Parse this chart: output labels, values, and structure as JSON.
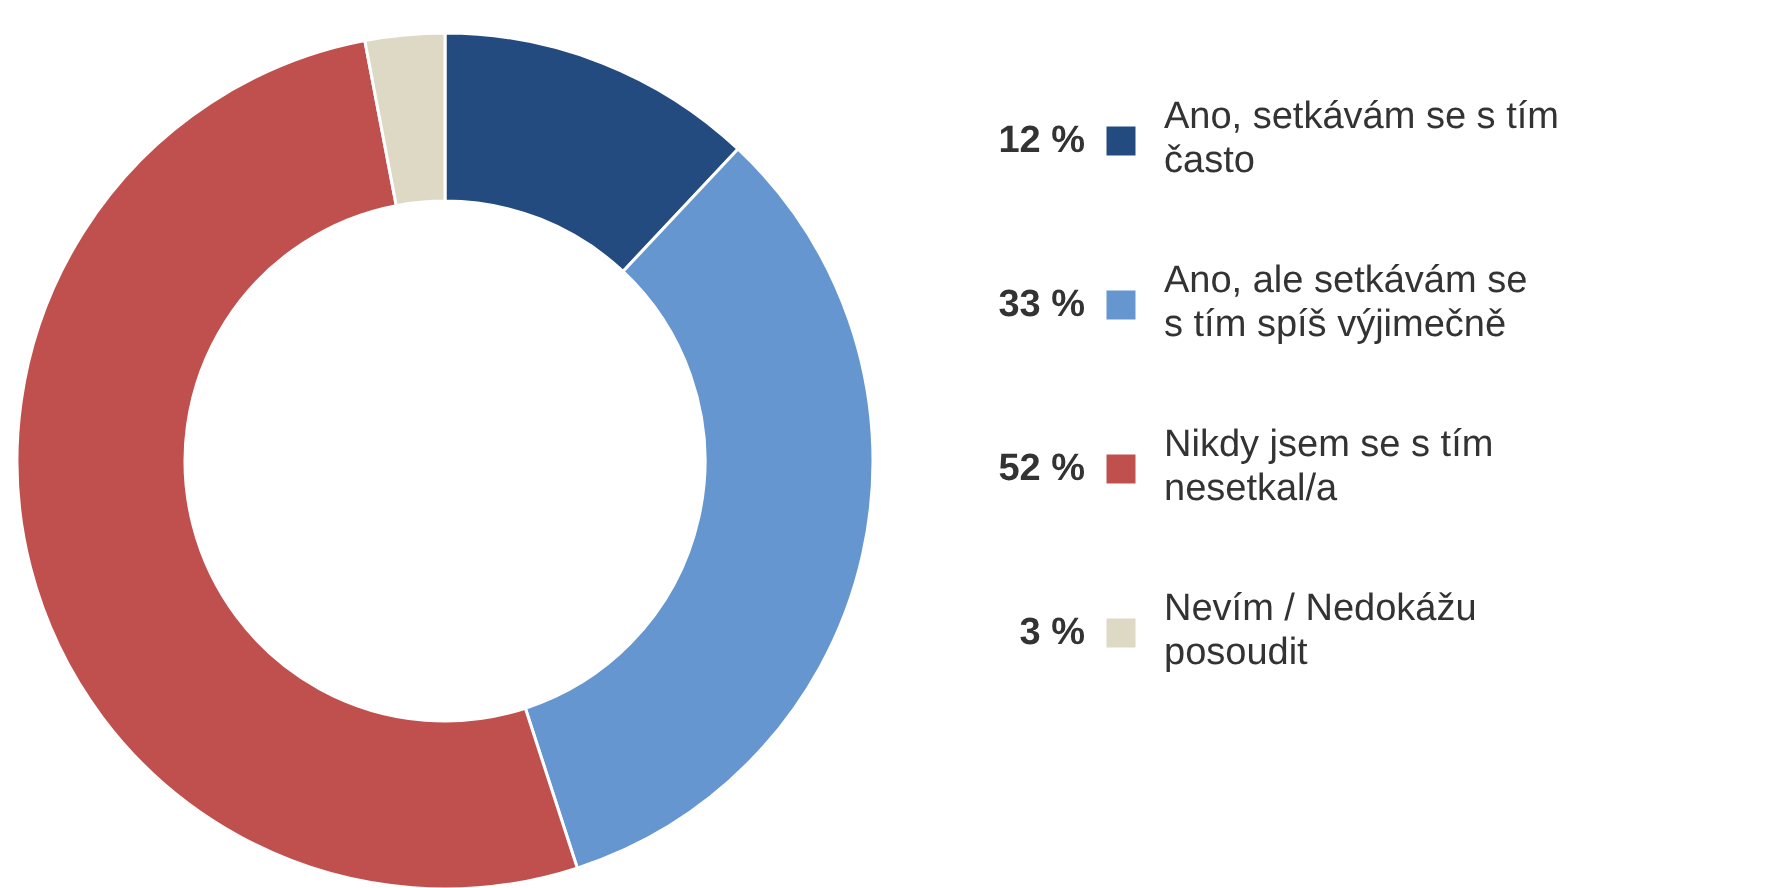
{
  "chart_data": {
    "type": "donut",
    "categories": [
      "Ano, setkávám se s tím často",
      "Ano, ale setkávám se s tím spíš výjimečně",
      "Nikdy jsem se s tím nesetkal/a",
      "Nevím / Nedokážu posoudit"
    ],
    "values": [
      12,
      33,
      52,
      3
    ],
    "value_labels": [
      "12 %",
      "33 %",
      "52 %",
      "3 %"
    ],
    "colors": [
      "#244b7f",
      "#6596d0",
      "#c0504e",
      "#ddd9c5"
    ],
    "legend": "right"
  }
}
